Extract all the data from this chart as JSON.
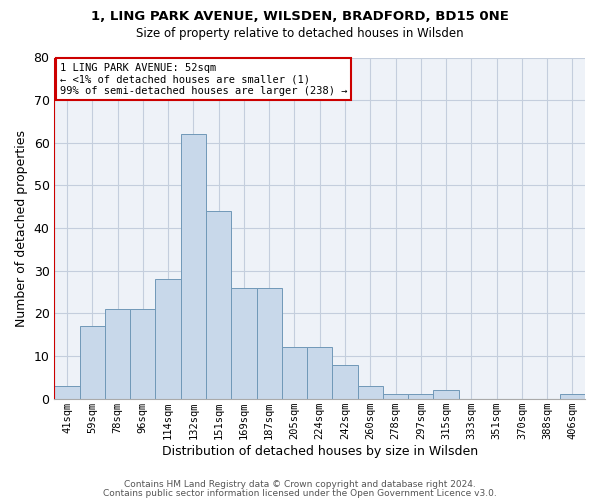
{
  "title1": "1, LING PARK AVENUE, WILSDEN, BRADFORD, BD15 0NE",
  "title2": "Size of property relative to detached houses in Wilsden",
  "xlabel": "Distribution of detached houses by size in Wilsden",
  "ylabel": "Number of detached properties",
  "categories": [
    "41sqm",
    "59sqm",
    "78sqm",
    "96sqm",
    "114sqm",
    "132sqm",
    "151sqm",
    "169sqm",
    "187sqm",
    "205sqm",
    "224sqm",
    "242sqm",
    "260sqm",
    "278sqm",
    "297sqm",
    "315sqm",
    "333sqm",
    "351sqm",
    "370sqm",
    "388sqm",
    "406sqm"
  ],
  "values": [
    3,
    17,
    21,
    21,
    28,
    62,
    44,
    26,
    26,
    12,
    12,
    8,
    3,
    1,
    1,
    2,
    0,
    0,
    0,
    0,
    1
  ],
  "bar_color": "#c8d8ea",
  "bar_edge_color": "#7098b8",
  "annotation_box_color": "#ffffff",
  "annotation_border_color": "#cc0000",
  "annotation_text_line1": "1 LING PARK AVENUE: 52sqm",
  "annotation_text_line2": "← <1% of detached houses are smaller (1)",
  "annotation_text_line3": "99% of semi-detached houses are larger (238) →",
  "red_line_x": -0.5,
  "ylim": [
    0,
    80
  ],
  "yticks": [
    0,
    10,
    20,
    30,
    40,
    50,
    60,
    70,
    80
  ],
  "footer1": "Contains HM Land Registry data © Crown copyright and database right 2024.",
  "footer2": "Contains public sector information licensed under the Open Government Licence v3.0.",
  "bg_color": "#eef2f8",
  "grid_color": "#c4cedd",
  "title1_fontsize": 9.5,
  "title2_fontsize": 8.5
}
